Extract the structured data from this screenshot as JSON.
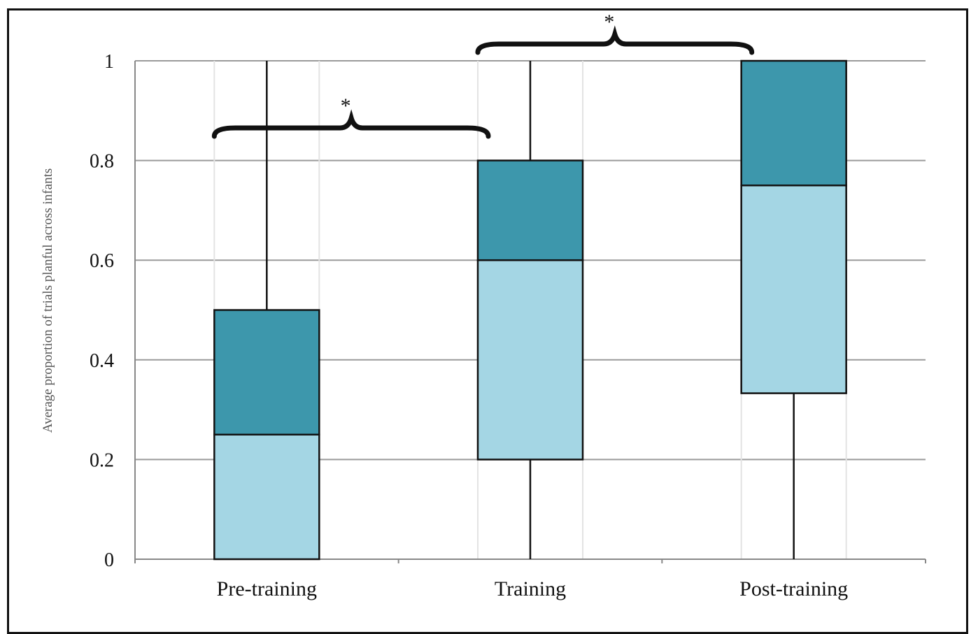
{
  "chart_data": {
    "type": "box",
    "title": "",
    "xlabel": "",
    "ylabel": "Average proportion of trials planful across infants",
    "ylim": [
      0,
      1
    ],
    "yticks": [
      "0",
      "0.2",
      "0.4",
      "0.6",
      "0.8",
      "1"
    ],
    "categories": [
      "Pre-training",
      "Training",
      "Post-training"
    ],
    "boxes": [
      {
        "category": "Pre-training",
        "min": 0,
        "q1": 0,
        "median": 0.25,
        "q3": 0.5,
        "max": 1
      },
      {
        "category": "Training",
        "min": 0,
        "q1": 0.2,
        "median": 0.6,
        "q3": 0.8,
        "max": 1
      },
      {
        "category": "Post-training",
        "min": 0,
        "q1": 0.333,
        "median": 0.75,
        "q3": 1,
        "max": 1
      }
    ],
    "colors": {
      "upper_box": "#3d97ac",
      "lower_box": "#a4d6e4",
      "grid": "#9a9a9a",
      "axis": "#888888"
    },
    "grid": true,
    "annotations": [
      {
        "label": "*",
        "from": "Pre-training",
        "to": "Training"
      },
      {
        "label": "*",
        "from": "Training",
        "to": "Post-training"
      }
    ]
  }
}
